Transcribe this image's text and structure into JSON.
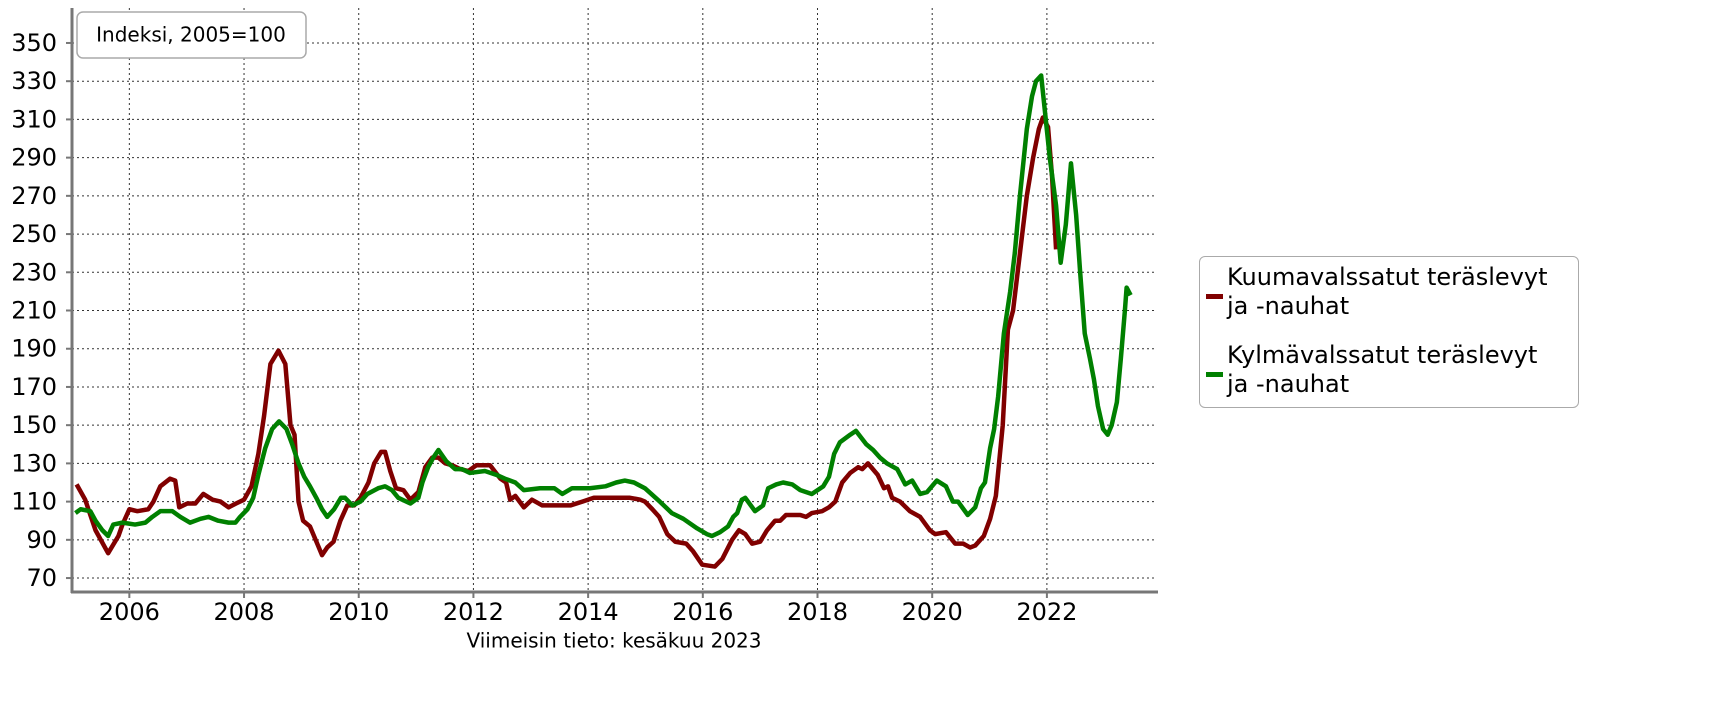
{
  "chart_data": {
    "type": "line",
    "title": "Indeksi, 2005=100",
    "footnote": "Viimeisin tieto: kesäkuu 2023",
    "xlim": [
      2005.0,
      2023.92
    ],
    "xticks": [
      2006,
      2008,
      2010,
      2012,
      2014,
      2016,
      2018,
      2020,
      2022
    ],
    "ylim": [
      62.7,
      368.3
    ],
    "yticks": [
      70,
      90,
      110,
      130,
      150,
      170,
      190,
      210,
      230,
      250,
      270,
      290,
      310,
      330,
      350
    ],
    "grid": true,
    "legend": "right",
    "series": [
      {
        "name": "Kuumavalssatut teräslevyt ja -nauhat",
        "color": "#800000",
        "x": [
          2005.08,
          2005.23,
          2005.41,
          2005.63,
          2005.81,
          2005.88,
          2006.0,
          2006.14,
          2006.33,
          2006.42,
          2006.54,
          2006.71,
          2006.8,
          2006.87,
          2007.01,
          2007.15,
          2007.29,
          2007.45,
          2007.59,
          2007.73,
          2007.86,
          2008.0,
          2008.13,
          2008.25,
          2008.35,
          2008.46,
          2008.6,
          2008.72,
          2008.81,
          2008.88,
          2008.95,
          2009.03,
          2009.15,
          2009.29,
          2009.36,
          2009.45,
          2009.56,
          2009.68,
          2009.8,
          2009.92,
          2010.03,
          2010.17,
          2010.27,
          2010.39,
          2010.46,
          2010.55,
          2010.65,
          2010.78,
          2010.9,
          2011.04,
          2011.16,
          2011.28,
          2011.39,
          2011.51,
          2011.63,
          2011.77,
          2011.91,
          2012.05,
          2012.29,
          2012.47,
          2012.57,
          2012.64,
          2012.73,
          2012.88,
          2013.02,
          2013.2,
          2013.42,
          2013.69,
          2013.9,
          2014.1,
          2014.38,
          2014.73,
          2014.91,
          2014.99,
          2015.12,
          2015.24,
          2015.38,
          2015.52,
          2015.71,
          2015.83,
          2015.99,
          2016.21,
          2016.34,
          2016.51,
          2016.63,
          2016.74,
          2016.86,
          2017.0,
          2017.12,
          2017.26,
          2017.35,
          2017.45,
          2017.59,
          2017.7,
          2017.8,
          2017.9,
          2018.08,
          2018.2,
          2018.31,
          2018.43,
          2018.57,
          2018.71,
          2018.78,
          2018.88,
          2019.05,
          2019.16,
          2019.23,
          2019.3,
          2019.44,
          2019.61,
          2019.79,
          2019.96,
          2020.05,
          2020.24,
          2020.4,
          2020.54,
          2020.66,
          2020.75,
          2020.9,
          2021.01,
          2021.11,
          2021.23,
          2021.32,
          2021.41,
          2021.53,
          2021.65,
          2021.76,
          2021.86,
          2021.93,
          2022.02,
          2022.09,
          2022.16
        ],
        "values": [
          119,
          111,
          95,
          83,
          92,
          98,
          106,
          105,
          106,
          110,
          118,
          122,
          121,
          107,
          109,
          109,
          114,
          111,
          110,
          107,
          109,
          111,
          118,
          135,
          155,
          182,
          189,
          182,
          150,
          145,
          110,
          100,
          97,
          87,
          82,
          86,
          89,
          100,
          108,
          108,
          112,
          120,
          130,
          136,
          136,
          126,
          117,
          116,
          111,
          115,
          128,
          133,
          133,
          130,
          129,
          127,
          126,
          129,
          129,
          122,
          120,
          111,
          113,
          107,
          111,
          108,
          108,
          108,
          110,
          112,
          112,
          112,
          111,
          110,
          106,
          102,
          93,
          89,
          88,
          84,
          77,
          76,
          80,
          90,
          95,
          93,
          88,
          89,
          95,
          100,
          100,
          103,
          103,
          103,
          102,
          104,
          105,
          107,
          110,
          120,
          125,
          128,
          127,
          130,
          124,
          117,
          118,
          112,
          110,
          105,
          102,
          95,
          93,
          94,
          88,
          88,
          86,
          87,
          92,
          101,
          113,
          150,
          200,
          210,
          240,
          270,
          290,
          305,
          311,
          306,
          280,
          242
        ]
      },
      {
        "name": "Kylmävalssatut teräslevyt ja -nauhat",
        "color": "#008000",
        "x": [
          2005.06,
          2005.15,
          2005.32,
          2005.41,
          2005.53,
          2005.63,
          2005.72,
          2005.88,
          2006.1,
          2006.28,
          2006.4,
          2006.54,
          2006.75,
          2006.89,
          2007.06,
          2007.24,
          2007.38,
          2007.55,
          2007.73,
          2007.85,
          2007.93,
          2008.06,
          2008.16,
          2008.25,
          2008.37,
          2008.49,
          2008.61,
          2008.74,
          2008.84,
          2008.95,
          2009.05,
          2009.15,
          2009.26,
          2009.36,
          2009.45,
          2009.57,
          2009.69,
          2009.76,
          2009.89,
          2010.03,
          2010.15,
          2010.34,
          2010.46,
          2010.58,
          2010.69,
          2010.9,
          2011.04,
          2011.11,
          2011.21,
          2011.3,
          2011.39,
          2011.53,
          2011.68,
          2011.8,
          2011.94,
          2012.2,
          2012.4,
          2012.55,
          2012.73,
          2012.88,
          2013.16,
          2013.41,
          2013.55,
          2013.72,
          2014.03,
          2014.3,
          2014.49,
          2014.64,
          2014.8,
          2014.99,
          2015.25,
          2015.46,
          2015.66,
          2015.9,
          2016.07,
          2016.16,
          2016.3,
          2016.44,
          2016.53,
          2016.6,
          2016.68,
          2016.74,
          2016.91,
          2017.05,
          2017.14,
          2017.28,
          2017.4,
          2017.56,
          2017.7,
          2017.9,
          2018.1,
          2018.2,
          2018.29,
          2018.39,
          2018.57,
          2018.67,
          2018.85,
          2018.97,
          2019.09,
          2019.21,
          2019.39,
          2019.53,
          2019.65,
          2019.79,
          2019.91,
          2020.08,
          2020.24,
          2020.36,
          2020.45,
          2020.62,
          2020.75,
          2020.85,
          2020.92,
          2021.01,
          2021.08,
          2021.15,
          2021.25,
          2021.36,
          2021.44,
          2021.53,
          2021.65,
          2021.74,
          2021.81,
          2021.9,
          2021.97,
          2022.05,
          2022.16,
          2022.24,
          2022.33,
          2022.42,
          2022.51,
          2022.58,
          2022.66,
          2022.75,
          2022.82,
          2022.89,
          2022.98,
          2023.06,
          2023.13,
          2023.22,
          2023.29,
          2023.36,
          2023.39,
          2023.46
        ],
        "values": [
          104,
          106,
          105,
          100,
          95,
          92,
          98,
          99,
          98,
          99,
          102,
          105,
          105,
          102,
          99,
          101,
          102,
          100,
          99,
          99,
          102,
          106,
          112,
          124,
          138,
          148,
          152,
          148,
          140,
          130,
          123,
          118,
          112,
          106,
          102,
          106,
          112,
          112,
          108,
          110,
          114,
          117,
          118,
          116,
          112,
          109,
          112,
          120,
          128,
          133,
          137,
          131,
          127,
          127,
          125,
          126,
          124,
          122,
          120,
          116,
          117,
          117,
          114,
          117,
          117,
          118,
          120,
          121,
          120,
          117,
          110,
          104,
          101,
          96,
          93,
          92,
          94,
          97,
          102,
          104,
          111,
          112,
          105,
          108,
          117,
          119,
          120,
          119,
          116,
          114,
          118,
          123,
          135,
          141,
          145,
          147,
          140,
          137,
          133,
          130,
          127,
          119,
          121,
          114,
          115,
          121,
          118,
          110,
          110,
          103,
          107,
          117,
          120,
          138,
          148,
          165,
          198,
          220,
          240,
          270,
          305,
          322,
          330,
          333,
          313,
          290,
          265,
          235,
          255,
          287,
          260,
          230,
          198,
          185,
          174,
          160,
          148,
          145,
          150,
          162,
          185,
          210,
          222,
          218
        ]
      }
    ]
  }
}
